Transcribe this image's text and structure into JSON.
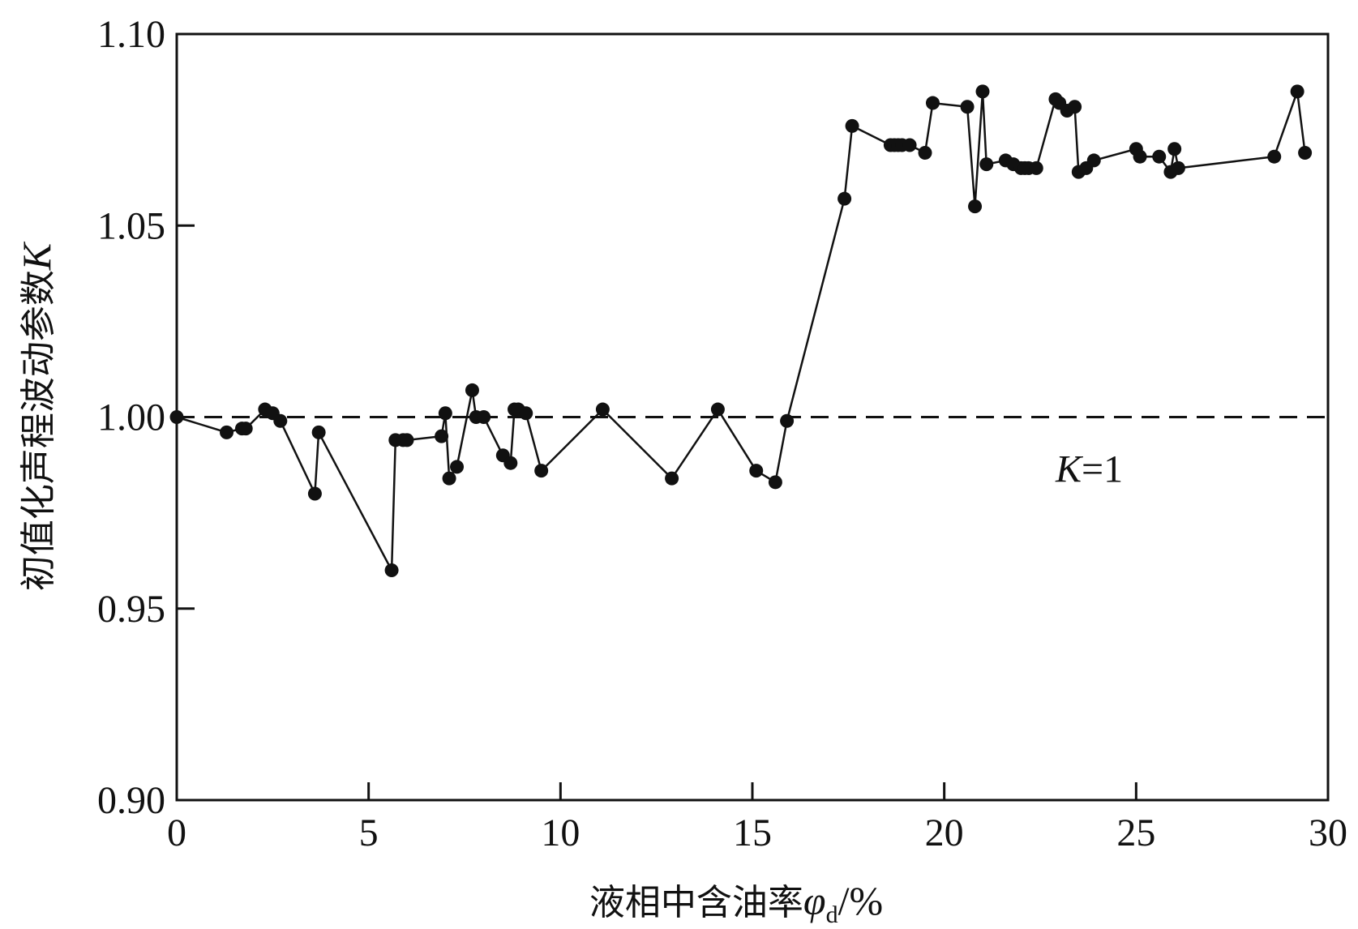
{
  "chart_data": {
    "type": "line",
    "title": "",
    "xlabel": "液相中含油率",
    "xlabel_symbol": "φ",
    "xlabel_subscript": "d",
    "xlabel_unit": "/%",
    "ylabel": "初值化声程波动参数",
    "ylabel_symbol": "K",
    "xlim": [
      0,
      30
    ],
    "ylim": [
      0.9,
      1.1
    ],
    "xticks": [
      0,
      5,
      10,
      15,
      20,
      25,
      30
    ],
    "xtick_labels": [
      "0",
      "5",
      "10",
      "15",
      "20",
      "25",
      "30"
    ],
    "yticks": [
      0.9,
      0.95,
      1.0,
      1.05,
      1.1
    ],
    "ytick_labels": [
      "0.90",
      "0.95",
      "1.00",
      "1.05",
      "1.10"
    ],
    "grid": false,
    "line_color": "#111111",
    "series": [
      {
        "x": [
          0.0,
          1.3,
          1.7,
          1.8,
          2.3,
          2.5,
          2.7,
          3.6,
          3.7,
          5.6,
          5.7,
          5.9,
          6.0,
          6.9,
          7.0,
          7.1,
          7.3,
          7.7,
          7.8,
          8.0,
          8.5,
          8.7,
          8.8,
          8.9,
          9.1,
          9.5,
          11.1,
          12.9,
          14.1,
          15.1,
          15.6,
          15.9,
          17.4,
          17.6,
          18.6,
          18.7,
          18.8,
          18.9,
          19.1,
          19.5,
          19.7,
          20.6,
          20.8,
          21.0,
          21.1,
          21.6,
          21.8,
          22.0,
          22.1,
          22.2,
          22.4,
          22.9,
          23.0,
          23.2,
          23.4,
          23.5,
          23.7,
          23.9,
          25.0,
          25.1,
          25.6,
          25.9,
          26.0,
          26.1,
          28.6,
          29.2,
          29.4
        ],
        "y": [
          1.0,
          0.996,
          0.997,
          0.997,
          1.002,
          1.001,
          0.999,
          0.98,
          0.996,
          0.96,
          0.994,
          0.994,
          0.994,
          0.995,
          1.001,
          0.984,
          0.987,
          1.007,
          1.0,
          1.0,
          0.99,
          0.988,
          1.002,
          1.002,
          1.001,
          0.986,
          1.002,
          0.984,
          1.002,
          0.986,
          0.983,
          0.999,
          1.057,
          1.076,
          1.071,
          1.071,
          1.071,
          1.071,
          1.071,
          1.069,
          1.082,
          1.081,
          1.055,
          1.085,
          1.066,
          1.067,
          1.066,
          1.065,
          1.065,
          1.065,
          1.065,
          1.083,
          1.082,
          1.08,
          1.081,
          1.064,
          1.065,
          1.067,
          1.07,
          1.068,
          1.068,
          1.064,
          1.07,
          1.065,
          1.068,
          1.085,
          1.069
        ]
      }
    ],
    "reference_line": {
      "y": 1.0,
      "style": "dashed",
      "label_symbol": "K",
      "label_text": "=1"
    }
  }
}
